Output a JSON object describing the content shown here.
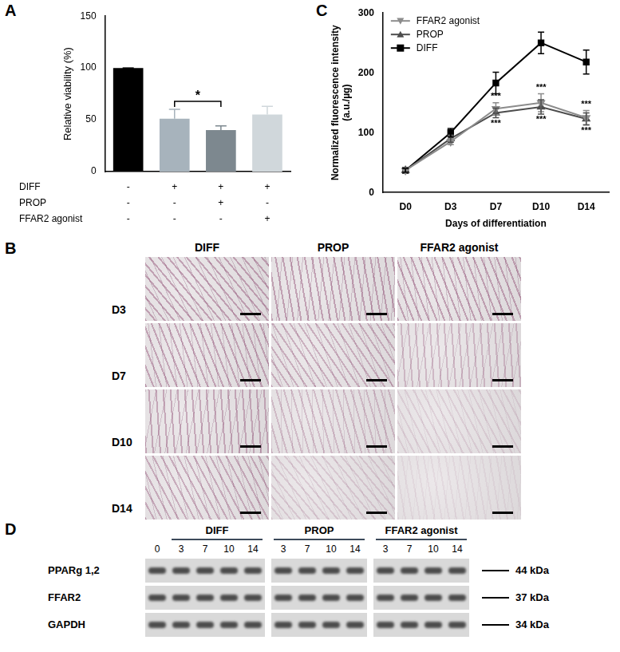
{
  "panels": [
    "A",
    "B",
    "C",
    "D"
  ],
  "chart_data": [
    {
      "type": "bar",
      "y_label": "Relative viability (%)",
      "categories": [
        null,
        null,
        null,
        null
      ],
      "values": [
        100,
        51,
        40,
        55
      ],
      "errors": [
        0,
        9,
        4,
        8
      ],
      "colors": [
        "#000000",
        "#a7b3bc",
        "#7d888f",
        "#d0d7db"
      ],
      "ylim": [
        0,
        150
      ],
      "yticks": [
        0,
        50,
        100,
        150
      ],
      "grid": false,
      "conditions": {
        "rows": [
          "DIFF",
          "PROP",
          "FFAR2 agonist"
        ],
        "marks": [
          [
            "-",
            "+",
            "+",
            "+"
          ],
          [
            "-",
            "-",
            "+",
            "-"
          ],
          [
            "-",
            "-",
            "-",
            "+"
          ]
        ]
      },
      "annotations": [
        {
          "text": "*",
          "between": [
            1,
            2
          ]
        }
      ]
    },
    {
      "type": "line",
      "x_label": "Days of differentiation",
      "y_label": [
        "Normalized fluorescence intensity",
        "(a.u./µg)"
      ],
      "categories": [
        "D0",
        "D3",
        "D7",
        "D10",
        "D14"
      ],
      "ylim": [
        0,
        300
      ],
      "yticks": [
        0,
        100,
        200,
        300
      ],
      "grid": false,
      "legend": "top-left",
      "series": [
        {
          "name": "FFAR2 agonist",
          "color": "#8c8c8c",
          "marker": "triangle-down",
          "values": [
            37,
            85,
            140,
            150,
            125
          ],
          "errors": [
            3,
            5,
            10,
            15,
            12
          ]
        },
        {
          "name": "PROP",
          "color": "#4d4d4d",
          "marker": "triangle",
          "values": [
            37,
            90,
            133,
            143,
            123
          ],
          "errors": [
            3,
            6,
            8,
            12,
            10
          ]
        },
        {
          "name": "DIFF",
          "color": "#000000",
          "marker": "square",
          "values": [
            37,
            100,
            183,
            250,
            218
          ],
          "errors": [
            3,
            7,
            18,
            18,
            20
          ]
        }
      ],
      "annotations": [
        {
          "text": "***",
          "category": "D7",
          "series": "FFAR2 agonist",
          "position": "above"
        },
        {
          "text": "***",
          "category": "D7",
          "series": "PROP",
          "position": "below"
        },
        {
          "text": "***",
          "category": "D10",
          "series": "FFAR2 agonist",
          "position": "above"
        },
        {
          "text": "***",
          "category": "D10",
          "series": "PROP",
          "position": "below"
        },
        {
          "text": "***",
          "category": "D14",
          "series": "FFAR2 agonist",
          "position": "above"
        },
        {
          "text": "***",
          "category": "D14",
          "series": "PROP",
          "position": "below"
        }
      ]
    }
  ],
  "micrographs": {
    "columns": [
      "DIFF",
      "PROP",
      "FFAR2 agonist"
    ],
    "rows": [
      "D3",
      "D7",
      "D10",
      "D14"
    ]
  },
  "western_blot": {
    "boxes": [
      {
        "group": "DIFF",
        "control_lanes": [
          "0"
        ],
        "lanes": [
          "3",
          "7",
          "10",
          "14"
        ]
      },
      {
        "group": "PROP",
        "control_lanes": [],
        "lanes": [
          "3",
          "7",
          "10",
          "14"
        ]
      },
      {
        "group": "FFAR2 agonist",
        "control_lanes": [],
        "lanes": [
          "3",
          "7",
          "10",
          "14"
        ]
      }
    ],
    "bands": [
      {
        "name": "PPARg 1,2",
        "size": "44 kDa"
      },
      {
        "name": "FFAR2",
        "size": "37 kDa"
      },
      {
        "name": "GAPDH",
        "size": "34 kDa"
      }
    ]
  }
}
